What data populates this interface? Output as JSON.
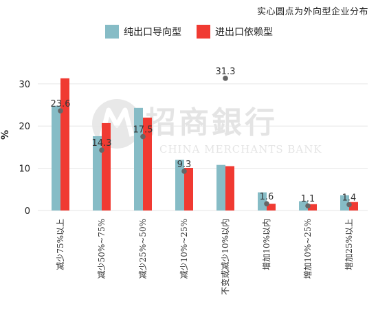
{
  "annotation": "实心圆点为外向型企业分布",
  "watermark": {
    "brand_cn": "招商銀行",
    "brand_en": "CHINA MERCHANTS BANK"
  },
  "colors": {
    "series1": "#86bcc6",
    "series2": "#f03a32",
    "dot": "#666666",
    "grid": "#e6e6e6"
  },
  "chart_data": {
    "type": "bar",
    "ylabel": "%",
    "ylim": [
      0,
      36
    ],
    "yticks": [
      "0",
      "10",
      "20",
      "30"
    ],
    "categories": [
      "减少75%以上",
      "减少50%~75%",
      "减少25%~50%",
      "减少10%~25%",
      "不变或减少10%以内",
      "增加10%以内",
      "增加10%~25%",
      "增加25%以上"
    ],
    "series": [
      {
        "name": "纯出口导向型",
        "values": [
          24.8,
          17.6,
          24.3,
          12.0,
          10.8,
          4.3,
          2.2,
          3.6
        ]
      },
      {
        "name": "进出口依赖型",
        "values": [
          31.3,
          20.7,
          22.0,
          10.1,
          10.5,
          1.6,
          1.5,
          2.0
        ]
      }
    ],
    "points": {
      "values": [
        23.6,
        14.3,
        17.5,
        9.3,
        31.3,
        1.6,
        1.1,
        1.4
      ],
      "labels": [
        "23.6",
        "14.3",
        "17.5",
        "9.3",
        "31.3",
        "1.6",
        "1.1",
        "1.4"
      ]
    }
  }
}
